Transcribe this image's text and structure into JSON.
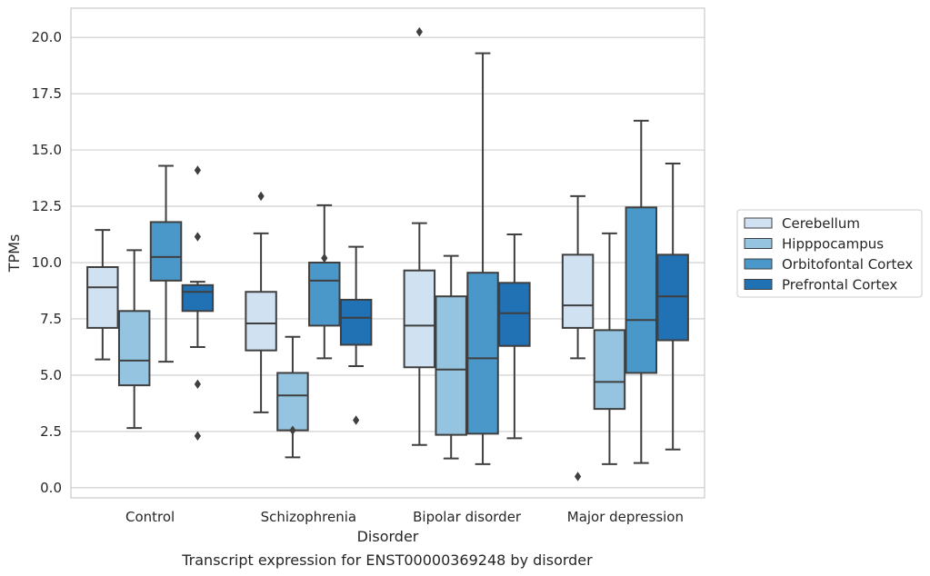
{
  "chart_data": {
    "type": "boxplot",
    "title": "Transcript expression for ENST00000369248 by disorder",
    "xlabel": "Disorder",
    "ylabel": "TPMs",
    "ylim": [
      -0.45,
      21.3
    ],
    "yticks": [
      "0.0",
      "2.5",
      "5.0",
      "7.5",
      "10.0",
      "12.5",
      "15.0",
      "17.5",
      "20.0"
    ],
    "grid": true,
    "legend_position": "right",
    "categories": [
      "Control",
      "Schizophrenia",
      "Bipolar disorder",
      "Major depression"
    ],
    "series": [
      {
        "name": "Cerebellum",
        "color": "#d0e1f2",
        "boxes": [
          {
            "whislo": 5.7,
            "q1": 7.1,
            "med": 8.9,
            "q3": 9.8,
            "whishi": 11.45,
            "fliers": []
          },
          {
            "whislo": 3.35,
            "q1": 6.1,
            "med": 7.3,
            "q3": 8.7,
            "whishi": 11.3,
            "fliers": [
              12.95
            ]
          },
          {
            "whislo": 1.9,
            "q1": 5.35,
            "med": 7.2,
            "q3": 9.65,
            "whishi": 11.75,
            "fliers": [
              20.25
            ]
          },
          {
            "whislo": 5.75,
            "q1": 7.1,
            "med": 8.1,
            "q3": 10.35,
            "whishi": 12.95,
            "fliers": [
              0.5
            ]
          }
        ]
      },
      {
        "name": "Hipppocampus",
        "color": "#94c4df",
        "boxes": [
          {
            "whislo": 2.65,
            "q1": 4.55,
            "med": 5.65,
            "q3": 7.85,
            "whishi": 10.55,
            "fliers": []
          },
          {
            "whislo": 1.35,
            "q1": 2.55,
            "med": 4.1,
            "q3": 5.1,
            "whishi": 6.7,
            "fliers": [
              2.55
            ]
          },
          {
            "whislo": 1.3,
            "q1": 2.35,
            "med": 5.25,
            "q3": 8.5,
            "whishi": 10.3,
            "fliers": []
          },
          {
            "whislo": 1.05,
            "q1": 3.5,
            "med": 4.7,
            "q3": 7.0,
            "whishi": 11.3,
            "fliers": []
          }
        ]
      },
      {
        "name": "Orbitofontal Cortex",
        "color": "#4a98c9",
        "boxes": [
          {
            "whislo": 5.6,
            "q1": 9.2,
            "med": 10.25,
            "q3": 11.8,
            "whishi": 14.3,
            "fliers": []
          },
          {
            "whislo": 5.75,
            "q1": 7.2,
            "med": 9.2,
            "q3": 10.0,
            "whishi": 12.55,
            "fliers": [
              10.2
            ]
          },
          {
            "whislo": 1.05,
            "q1": 2.4,
            "med": 5.75,
            "q3": 9.55,
            "whishi": 19.3,
            "fliers": []
          },
          {
            "whislo": 1.1,
            "q1": 5.1,
            "med": 7.45,
            "q3": 12.45,
            "whishi": 16.3,
            "fliers": []
          }
        ]
      },
      {
        "name": "Prefrontal Cortex",
        "color": "#2171b5",
        "boxes": [
          {
            "whislo": 6.25,
            "q1": 7.85,
            "med": 8.7,
            "q3": 9.0,
            "whishi": 9.15,
            "fliers": [
              14.1,
              11.15,
              4.6,
              2.3
            ]
          },
          {
            "whislo": 5.4,
            "q1": 6.35,
            "med": 7.55,
            "q3": 8.35,
            "whishi": 10.7,
            "fliers": [
              3.0
            ]
          },
          {
            "whislo": 2.2,
            "q1": 6.3,
            "med": 7.75,
            "q3": 9.1,
            "whishi": 11.25,
            "fliers": []
          },
          {
            "whislo": 1.7,
            "q1": 6.55,
            "med": 8.5,
            "q3": 10.35,
            "whishi": 14.4,
            "fliers": []
          }
        ]
      }
    ]
  }
}
